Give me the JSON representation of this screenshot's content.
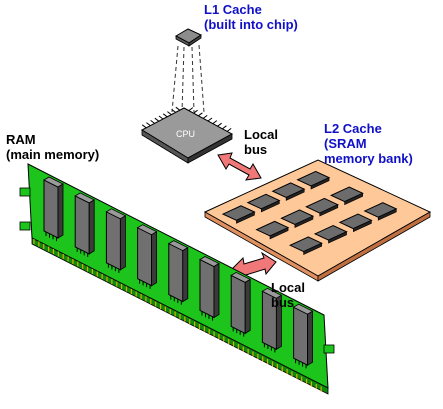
{
  "labels": {
    "l1_line1": "L1 Cache",
    "l1_line2": "(built into chip)",
    "l2_line1": "L2 Cache",
    "l2_line2": "(SRAM",
    "l2_line3": "memory bank)",
    "ram_line1": "RAM",
    "ram_line2": "(main memory)",
    "bus1_line1": "Local",
    "bus1_line2": "bus",
    "bus2_line1": "Local",
    "bus2_line2": "bus",
    "cpu_chip": "CPU"
  },
  "icons": {
    "l1": "l1-cache-die-icon",
    "cpu": "cpu-chip-icon",
    "l2": "sram-board-icon",
    "ram": "ram-module-icon",
    "arrow": "double-arrow-icon"
  },
  "colors": {
    "label_blue": "#1010c8",
    "pcb_green": "#1cc41c",
    "board_orange": "#ffc898",
    "chip_gray": "#7a7a7a",
    "arrow_pink": "#f07878"
  }
}
